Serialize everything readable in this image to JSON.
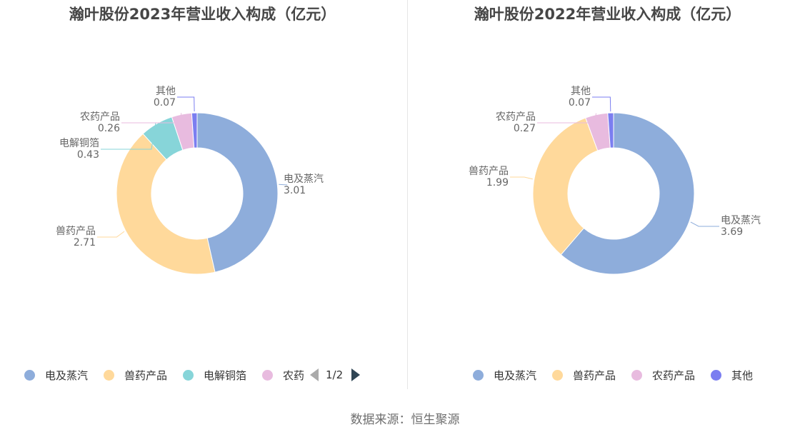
{
  "colors": {
    "电及蒸汽": "#8eaddb",
    "兽药产品": "#ffd99b",
    "电解铜箔": "#87d5d9",
    "农药产品": "#e8bbdf",
    "其他": "#7b7ef0"
  },
  "chart_data": [
    {
      "type": "pie",
      "variant": "donut",
      "title": "瀚叶股份2023年营业收入构成（亿元）",
      "categories": [
        "电及蒸汽",
        "兽药产品",
        "电解铜箔",
        "农药产品",
        "其他"
      ],
      "values": [
        3.01,
        2.71,
        0.43,
        0.26,
        0.07
      ],
      "legend": {
        "position": "bottom",
        "items": [
          "电及蒸汽",
          "兽药产品",
          "电解铜箔",
          "农药"
        ],
        "page": "1/2"
      }
    },
    {
      "type": "pie",
      "variant": "donut",
      "title": "瀚叶股份2022年营业收入构成（亿元）",
      "categories": [
        "电及蒸汽",
        "兽药产品",
        "农药产品",
        "其他"
      ],
      "values": [
        3.69,
        1.99,
        0.27,
        0.07
      ],
      "legend": {
        "position": "bottom",
        "items": [
          "电及蒸汽",
          "兽药产品",
          "农药产品",
          "其他"
        ]
      }
    }
  ],
  "source": "数据来源：恒生聚源"
}
